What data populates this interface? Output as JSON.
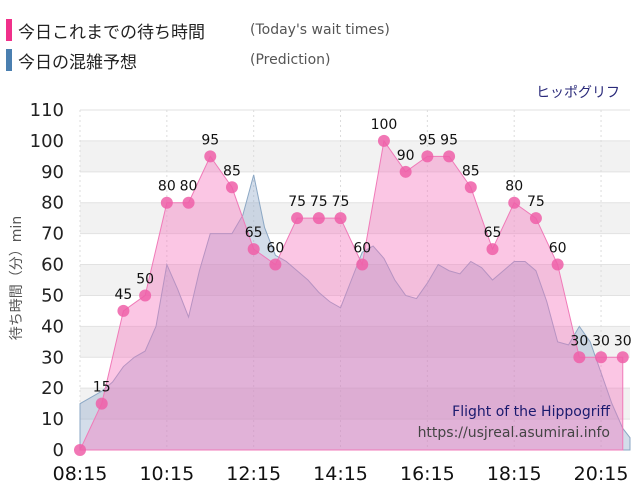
{
  "legend": {
    "today": {
      "label": "今日これまでの待ち時間",
      "sub": "(Today's wait times)",
      "color": "#f0308a"
    },
    "prediction": {
      "label": "今日の混雑予想",
      "sub": "(Prediction)",
      "color": "#4a7fb0"
    }
  },
  "attraction_name_jp": "ヒッポグリフ",
  "watermark": {
    "name": "Flight of the Hippogriff",
    "url": "https://usjreal.asumirai.info"
  },
  "chart_data": {
    "type": "area",
    "ylabel": "待ち時間（分）min",
    "ylim": [
      0,
      110
    ],
    "yticks": [
      0,
      10,
      20,
      30,
      40,
      50,
      60,
      70,
      80,
      90,
      100,
      110
    ],
    "xlim": [
      "08:15",
      "20:55"
    ],
    "xticks": [
      "08:15",
      "10:15",
      "12:15",
      "14:15",
      "16:15",
      "18:15",
      "20:15"
    ],
    "grid": true,
    "series": [
      {
        "name": "今日これまでの待ち時間",
        "color": "#f0308a",
        "x": [
          "08:15",
          "08:45",
          "09:15",
          "09:45",
          "10:15",
          "10:45",
          "11:15",
          "11:45",
          "12:15",
          "12:45",
          "13:15",
          "13:45",
          "14:15",
          "14:45",
          "15:15",
          "15:45",
          "16:15",
          "16:45",
          "17:15",
          "17:45",
          "18:15",
          "18:45",
          "19:15",
          "19:45",
          "20:15",
          "20:45"
        ],
        "y": [
          0,
          15,
          45,
          50,
          80,
          80,
          95,
          85,
          65,
          60,
          75,
          75,
          75,
          60,
          100,
          90,
          95,
          95,
          85,
          65,
          80,
          75,
          60,
          30,
          30,
          30
        ]
      },
      {
        "name": "今日の混雑予想",
        "color": "#4a7fb0",
        "x": [
          "08:15",
          "08:30",
          "08:45",
          "09:00",
          "09:15",
          "09:30",
          "09:45",
          "10:00",
          "10:15",
          "10:30",
          "10:45",
          "11:00",
          "11:15",
          "11:30",
          "11:45",
          "12:00",
          "12:15",
          "12:30",
          "12:45",
          "13:00",
          "13:15",
          "13:30",
          "13:45",
          "14:00",
          "14:15",
          "14:30",
          "14:45",
          "15:00",
          "15:15",
          "15:30",
          "15:45",
          "16:00",
          "16:15",
          "16:30",
          "16:45",
          "17:00",
          "17:15",
          "17:30",
          "17:45",
          "18:00",
          "18:15",
          "18:30",
          "18:45",
          "19:00",
          "19:15",
          "19:30",
          "19:45",
          "20:00",
          "20:15",
          "20:30",
          "20:45",
          "20:55"
        ],
        "y": [
          15,
          17,
          19,
          22,
          27,
          30,
          32,
          40,
          60,
          52,
          43,
          58,
          70,
          70,
          70,
          76,
          89,
          72,
          63,
          61,
          58,
          55,
          51,
          48,
          46,
          55,
          64,
          66,
          62,
          55,
          50,
          49,
          54,
          60,
          58,
          57,
          61,
          59,
          55,
          58,
          61,
          61,
          58,
          48,
          35,
          34,
          40,
          35,
          25,
          15,
          7,
          4
        ]
      }
    ],
    "point_labels": [
      "",
      "15",
      "45",
      "50",
      "80",
      "80",
      "95",
      "85",
      "65",
      "60",
      "75",
      "75",
      "75",
      "60",
      "100",
      "90",
      "95",
      "95",
      "85",
      "65",
      "80",
      "75",
      "60",
      "30",
      "30",
      "30"
    ]
  }
}
